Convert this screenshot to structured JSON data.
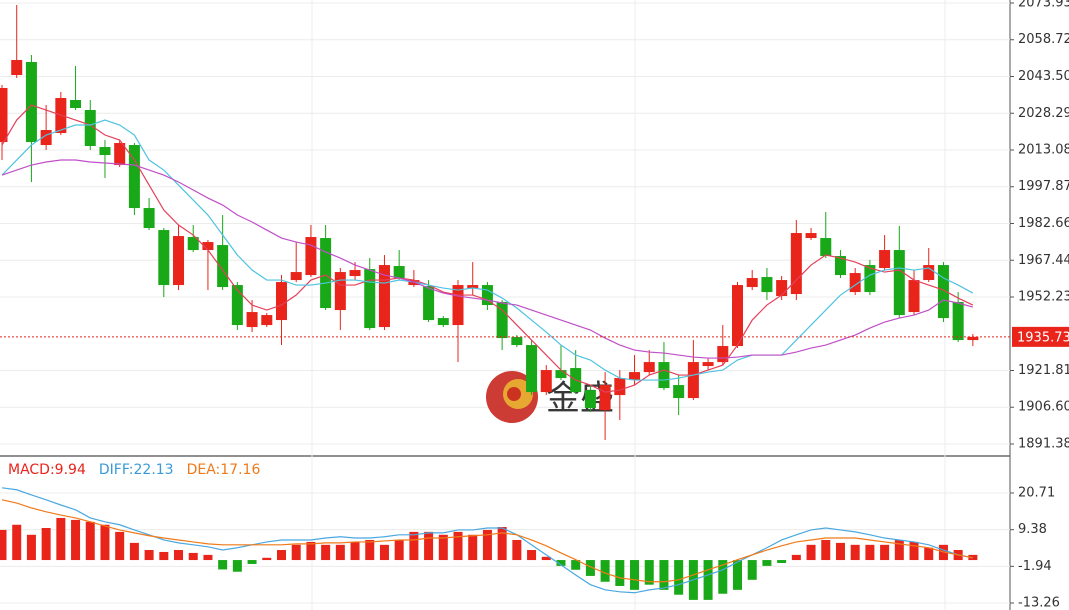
{
  "chart_data": [
    {
      "type": "candlestick",
      "up_color": "#e8241b",
      "down_color": "#18a818",
      "open": [
        2016.38,
        2044.12,
        2049.5,
        2015.14,
        2020.11,
        2033.77,
        2029.63,
        2014.31,
        2006.86,
        2015.14,
        1989.06,
        1979.95,
        1957.18,
        1977.05,
        1971.67,
        1973.74,
        1957.18,
        1939.79,
        1940.62,
        1942.69,
        1959.25,
        1961.32,
        1976.64,
        1946.83,
        1960.91,
        1963.8,
        1939.79,
        1965.05,
        1957.18,
        1956.77,
        1943.52,
        1940.62,
        1955.94,
        1957.18,
        1950.15,
        1935.65,
        1932.34,
        1912.88,
        1921.99,
        1922.82,
        1913.71,
        1905.43,
        1911.64,
        1917.85,
        1921.16,
        1925.3,
        1915.78,
        1910.4,
        1923.65,
        1925.3,
        1931.93,
        1956.35,
        1960.49,
        1952.63,
        1953.46,
        1976.64,
        1976.64,
        1969.19,
        1954.28,
        1965.46,
        1964.22,
        1971.67,
        1946.0,
        1959.25,
        1965.46,
        1950.15,
        1934.41
      ],
      "high": [
        2039.98,
        2073.1,
        2052.4,
        2031.7,
        2037.08,
        2047.85,
        2033.77,
        2017.21,
        2017.21,
        2015.97,
        1993.2,
        1980.78,
        1982.02,
        1982.02,
        1975.81,
        1986.16,
        1958.42,
        1950.97,
        1945.59,
        1961.32,
        1974.98,
        1982.02,
        1982.02,
        1964.22,
        1966.7,
        1968.36,
        1969.6,
        1971.67,
        1963.39,
        1959.25,
        1944.35,
        1959.25,
        1966.7,
        1958.42,
        1950.97,
        1936.48,
        1934.41,
        1924.06,
        1932.34,
        1930.27,
        1915.78,
        1921.16,
        1921.99,
        1928.2,
        1930.27,
        1933.58,
        1919.92,
        1934.41,
        1926.96,
        1940.62,
        1958.42,
        1963.39,
        1964.22,
        1960.91,
        1984.09,
        1980.78,
        1987.4,
        1971.67,
        1964.22,
        1967.53,
        1977.88,
        1981.61,
        1963.39,
        1972.5,
        1966.7,
        1954.28,
        1936.9
      ],
      "low": [
        2008.93,
        2042.88,
        1999.82,
        2013.07,
        2019.28,
        2029.63,
        2013.07,
        2001.48,
        2006.03,
        1986.16,
        1979.95,
        1952.21,
        1955.11,
        1970.84,
        1955.11,
        1955.11,
        1938.55,
        1937.72,
        1939.79,
        1932.34,
        1958.42,
        1960.49,
        1946.83,
        1938.55,
        1959.25,
        1938.55,
        1938.55,
        1959.25,
        1956.35,
        1941.86,
        1939.79,
        1925.3,
        1953.04,
        1946.83,
        1930.27,
        1931.51,
        1911.64,
        1911.64,
        1917.85,
        1912.06,
        1904.61,
        1893.01,
        1901.29,
        1915.78,
        1919.92,
        1913.71,
        1903.36,
        1909.57,
        1921.99,
        1924.06,
        1931.1,
        1955.11,
        1950.97,
        1950.97,
        1950.97,
        1975.81,
        1968.36,
        1960.08,
        1953.04,
        1953.04,
        1963.39,
        1943.52,
        1944.76,
        1958.42,
        1941.86,
        1933.58,
        1931.93
      ],
      "close": [
        2038.74,
        2050.33,
        2016.38,
        2021.35,
        2034.6,
        2030.46,
        2014.73,
        2011.0,
        2015.97,
        1989.06,
        1980.78,
        1957.18,
        1977.47,
        1971.67,
        1974.98,
        1956.35,
        1940.62,
        1946.0,
        1944.76,
        1958.42,
        1962.56,
        1977.05,
        1947.66,
        1962.56,
        1963.39,
        1939.38,
        1965.46,
        1960.08,
        1959.25,
        1942.69,
        1940.62,
        1957.18,
        1957.18,
        1948.9,
        1935.24,
        1932.34,
        1912.88,
        1921.99,
        1918.68,
        1912.88,
        1906.26,
        1915.78,
        1918.68,
        1921.16,
        1925.3,
        1914.54,
        1910.4,
        1925.3,
        1925.3,
        1931.93,
        1957.18,
        1960.08,
        1954.28,
        1959.25,
        1978.71,
        1978.71,
        1969.19,
        1961.32,
        1962.15,
        1954.28,
        1971.67,
        1944.76,
        1959.25,
        1965.46,
        1943.52,
        1934.41,
        1935.73
      ],
      "overlays": [
        {
          "color": "#e5405a",
          "values": [
            2015.14,
            2025.49,
            2031.7,
            2029.63,
            2027.56,
            2025.49,
            2023.42,
            2019.28,
            2017.21,
            2008.93,
            1998.58,
            1988.23,
            1982.02,
            1977.88,
            1971.67,
            1963.39,
            1955.11,
            1948.9,
            1946.83,
            1948.9,
            1953.04,
            1959.25,
            1961.32,
            1957.18,
            1957.18,
            1959.25,
            1959.25,
            1960.08,
            1959.25,
            1957.18,
            1954.28,
            1953.04,
            1953.04,
            1950.97,
            1946.83,
            1940.62,
            1934.41,
            1928.2,
            1921.99,
            1917.85,
            1915.78,
            1912.88,
            1913.71,
            1915.78,
            1919.92,
            1921.99,
            1919.92,
            1919.92,
            1921.99,
            1924.06,
            1932.34,
            1942.69,
            1948.9,
            1953.04,
            1959.25,
            1965.46,
            1969.6,
            1968.36,
            1966.7,
            1964.22,
            1962.56,
            1963.39,
            1959.25,
            1957.18,
            1955.11,
            1951.8,
            1948.9
          ]
        },
        {
          "color": "#4ec3e0",
          "values": [
            2002.72,
            2008.93,
            2015.14,
            2019.28,
            2021.35,
            2023.42,
            2023.42,
            2025.49,
            2023.42,
            2019.28,
            2008.93,
            2004.79,
            1998.58,
            1992.37,
            1986.16,
            1977.88,
            1969.6,
            1963.39,
            1959.25,
            1959.25,
            1957.18,
            1957.18,
            1958.01,
            1959.25,
            1959.25,
            1958.42,
            1958.01,
            1959.25,
            1958.42,
            1957.18,
            1955.94,
            1955.11,
            1955.94,
            1955.11,
            1951.8,
            1947.66,
            1942.69,
            1937.72,
            1932.34,
            1928.2,
            1926.13,
            1921.99,
            1918.68,
            1917.85,
            1917.85,
            1917.85,
            1918.68,
            1919.92,
            1921.16,
            1921.99,
            1926.13,
            1928.2,
            1928.2,
            1928.2,
            1934.41,
            1940.62,
            1946.83,
            1953.04,
            1957.18,
            1961.32,
            1963.39,
            1964.22,
            1963.39,
            1964.22,
            1960.08,
            1957.18,
            1953.87
          ]
        },
        {
          "color": "#c04fc8",
          "values": [
            2002.72,
            2004.79,
            2006.86,
            2008.11,
            2008.93,
            2008.93,
            2008.11,
            2007.69,
            2007.28,
            2006.86,
            2004.79,
            2002.72,
            1999.83,
            1996.51,
            1993.2,
            1990.3,
            1986.16,
            1983.27,
            1979.95,
            1976.64,
            1974.98,
            1973.74,
            1970.84,
            1968.36,
            1965.46,
            1963.39,
            1961.32,
            1960.08,
            1958.42,
            1955.94,
            1953.87,
            1952.63,
            1951.8,
            1950.97,
            1949.74,
            1948.9,
            1946.83,
            1944.76,
            1942.69,
            1940.62,
            1938.57,
            1935.24,
            1932.34,
            1930.27,
            1929.44,
            1929.03,
            1928.2,
            1927.37,
            1926.96,
            1926.96,
            1927.37,
            1928.2,
            1928.2,
            1928.2,
            1929.44,
            1931.1,
            1932.34,
            1934.41,
            1936.48,
            1939.38,
            1941.86,
            1943.52,
            1944.76,
            1946.83,
            1950.97,
            1949.74,
            1948.07
          ]
        }
      ],
      "last_price": 1935.73,
      "last_price_color": "#e8241b",
      "watermark": "金盛",
      "ylim": [
        1886.83,
        2075.17
      ],
      "yticks": [
        2073.93,
        2058.72,
        {
          "value": 2043.5,
          "label": "2043.50"
        },
        2028.29,
        2013.08,
        1997.87,
        1982.66,
        1967.44,
        1952.23,
        1921.81,
        {
          "value": 1906.6,
          "label": "1906.60"
        },
        1891.38
      ],
      "grid": true
    },
    {
      "type": "macd",
      "legend": [
        {
          "text": "MACD:9.94",
          "color": "#e8241b"
        },
        {
          "text": "DIFF:22.13",
          "color": "#3a9ad9"
        },
        {
          "text": "DEA:17.16",
          "color": "#f07a1a"
        }
      ],
      "up_color": "#e8241b",
      "down_color": "#18a818",
      "values": [
        9.3,
        10.9,
        7.8,
        9.9,
        13.0,
        12.4,
        11.8,
        10.9,
        8.7,
        5.3,
        3.1,
        2.5,
        3.1,
        2.2,
        1.6,
        -2.9,
        -3.6,
        -1.2,
        0.7,
        3.1,
        4.7,
        5.6,
        4.7,
        4.7,
        5.6,
        6.2,
        4.7,
        6.2,
        8.7,
        8.7,
        7.8,
        8.7,
        7.8,
        9.3,
        10.2,
        6.2,
        3.1,
        1.0,
        -1.8,
        -3.0,
        -4.9,
        -6.7,
        -8.0,
        -9.2,
        -7.6,
        -9.2,
        -10.7,
        -12.3,
        -12.3,
        -10.4,
        -9.2,
        -6.1,
        -1.8,
        -0.9,
        1.6,
        4.7,
        6.2,
        5.3,
        4.7,
        4.7,
        4.7,
        6.2,
        5.6,
        3.8,
        4.7,
        3.1,
        1.6
      ],
      "series": [
        {
          "color": "#4aa8e0",
          "values": [
            22.3,
            21.7,
            20.1,
            18.6,
            17.0,
            15.5,
            13.0,
            11.8,
            10.9,
            9.3,
            7.8,
            6.2,
            5.3,
            4.7,
            4.1,
            3.1,
            3.8,
            4.7,
            5.6,
            6.2,
            6.2,
            6.2,
            6.8,
            7.2,
            6.8,
            6.8,
            7.2,
            7.8,
            7.8,
            8.4,
            8.4,
            9.3,
            9.3,
            9.9,
            9.9,
            7.8,
            4.7,
            1.6,
            -1.5,
            -4.6,
            -7.6,
            -9.2,
            -9.8,
            -10.1,
            -9.2,
            -8.6,
            -7.6,
            -6.1,
            -4.6,
            -3.0,
            -0.6,
            1.6,
            3.8,
            6.2,
            7.8,
            9.3,
            9.9,
            9.3,
            8.7,
            7.8,
            6.8,
            6.2,
            5.6,
            4.7,
            3.1,
            1.6,
            0.7
          ]
        },
        {
          "color": "#f07a1a",
          "values": [
            18.6,
            17.6,
            16.1,
            14.9,
            13.9,
            13.0,
            11.8,
            10.5,
            9.3,
            8.4,
            7.5,
            6.8,
            6.2,
            5.6,
            5.0,
            4.7,
            4.7,
            4.7,
            4.7,
            4.7,
            5.0,
            5.0,
            5.3,
            5.3,
            5.6,
            5.6,
            5.9,
            6.2,
            6.2,
            6.8,
            6.8,
            7.2,
            7.5,
            7.8,
            8.4,
            7.8,
            6.2,
            4.4,
            2.2,
            0.1,
            -2.1,
            -4.0,
            -5.5,
            -6.1,
            -6.7,
            -6.7,
            -6.1,
            -4.6,
            -3.0,
            -1.5,
            0.1,
            1.6,
            3.1,
            4.4,
            5.6,
            6.2,
            6.8,
            6.8,
            6.8,
            6.2,
            5.6,
            5.0,
            4.4,
            3.8,
            2.5,
            1.6,
            0.7
          ]
        }
      ],
      "ylim": [
        -15.42,
        31.51
      ],
      "yticks": [
        20.71,
        9.38,
        -1.94,
        -13.26
      ],
      "grid": true
    }
  ]
}
